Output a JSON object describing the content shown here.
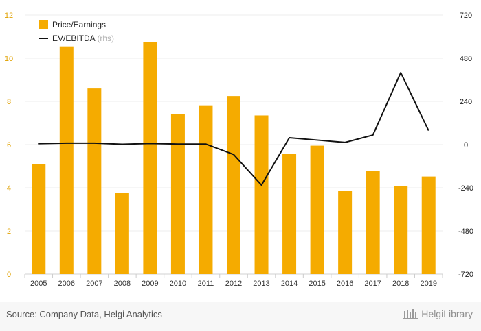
{
  "chart_data": {
    "type": "bar",
    "categories": [
      "2005",
      "2006",
      "2007",
      "2008",
      "2009",
      "2010",
      "2011",
      "2012",
      "2013",
      "2014",
      "2015",
      "2016",
      "2017",
      "2018",
      "2019"
    ],
    "series": [
      {
        "name": "Price/Earnings",
        "type": "bar",
        "axis": "left",
        "color": "#f5ab00",
        "values": [
          5.1,
          10.55,
          8.6,
          3.75,
          10.75,
          7.4,
          7.82,
          8.25,
          7.35,
          5.58,
          5.95,
          3.85,
          4.78,
          4.08,
          4.52
        ]
      },
      {
        "name": "EV/EBITDA",
        "name_suffix": "(rhs)",
        "type": "line",
        "axis": "right",
        "color": "#111111",
        "values": [
          5,
          8,
          8,
          2,
          6,
          3,
          3,
          -55,
          -225,
          38,
          25,
          12,
          53,
          400,
          78
        ]
      }
    ],
    "y_left": {
      "min": 0,
      "max": 12,
      "ticks": [
        0,
        2,
        4,
        6,
        8,
        10,
        12
      ]
    },
    "y_right": {
      "min": -720,
      "max": 720,
      "ticks": [
        -720,
        -480,
        -240,
        0,
        240,
        480,
        720
      ]
    },
    "grid": true,
    "legend_position": "top-left"
  },
  "footer": {
    "source": "Source: Company Data, Helgi Analytics",
    "brand": "HelgiLibrary"
  }
}
